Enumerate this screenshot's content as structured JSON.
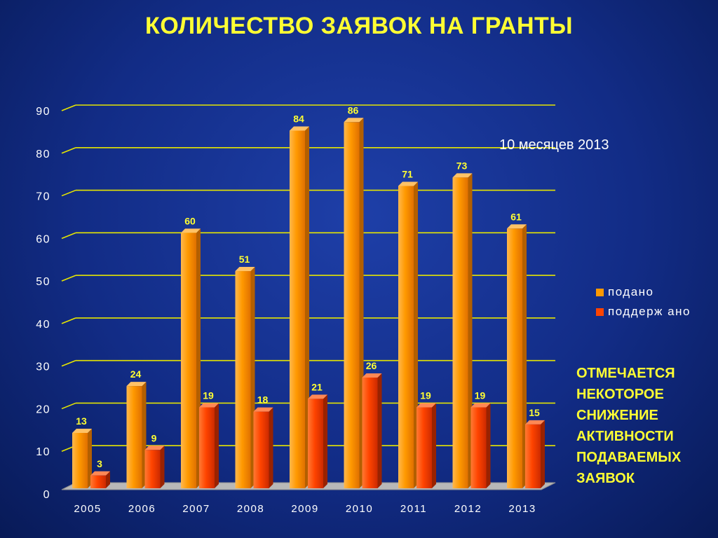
{
  "title": "КОЛИЧЕСТВО ЗАЯВОК НА ГРАНТЫ",
  "note": "10 месяцев 2013",
  "comment_lines": [
    "ОТМЕЧАЕТСЯ",
    "НЕКОТОРОЕ",
    "СНИЖЕНИЕ",
    "АКТИВНОСТИ",
    "ПОДАВАЕМЫХ",
    "ЗАЯВОК"
  ],
  "legend": [
    {
      "label": "подано",
      "color": "#ff9900"
    },
    {
      "label": "поддерж ано",
      "color": "#ff4400"
    }
  ],
  "chart_data": {
    "type": "bar",
    "categories": [
      "2005",
      "2006",
      "2007",
      "2008",
      "2009",
      "2010",
      "2011",
      "2012",
      "2013"
    ],
    "series": [
      {
        "name": "подано",
        "color": "#ff9900",
        "values": [
          13,
          24,
          60,
          51,
          84,
          86,
          71,
          73,
          61
        ]
      },
      {
        "name": "поддерж ано",
        "color": "#ff4400",
        "values": [
          3,
          9,
          19,
          18,
          21,
          26,
          19,
          19,
          15
        ]
      }
    ],
    "yticks": [
      0,
      10,
      20,
      30,
      40,
      50,
      60,
      70,
      80,
      90
    ],
    "ylim": [
      0,
      90
    ],
    "grid": true,
    "legend_position": "right",
    "label_color": "#ffff33",
    "grid_color": "#e6e600"
  }
}
